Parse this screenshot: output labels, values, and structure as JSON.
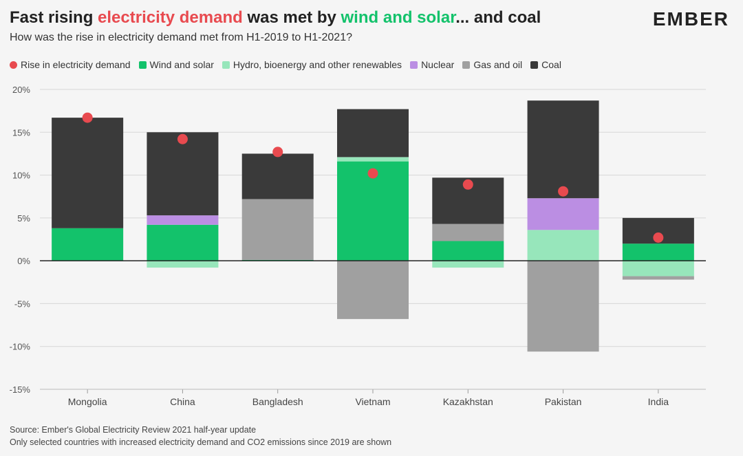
{
  "header": {
    "title_part1": "Fast rising ",
    "title_highlight1": "electricity demand",
    "title_part2": " was met by ",
    "title_highlight2": "wind and solar",
    "title_part3": "... and coal",
    "subtitle": "How was the rise in electricity demand met from H1-2019 to H1-2021?",
    "logo": "EMBER"
  },
  "colors": {
    "demand": "#e84a4f",
    "wind_solar": "#13c26b",
    "hydro": "#97e6bb",
    "nuclear": "#bb8ee3",
    "gas_oil": "#a0a0a0",
    "coal": "#3a3a3a",
    "title_red": "#e84a4f",
    "title_green": "#13c26b"
  },
  "legend": [
    {
      "label": "Rise in electricity demand",
      "key": "demand",
      "shape": "dot"
    },
    {
      "label": "Wind and solar",
      "key": "wind_solar",
      "shape": "square"
    },
    {
      "label": "Hydro, bioenergy and other renewables",
      "key": "hydro",
      "shape": "square"
    },
    {
      "label": "Nuclear",
      "key": "nuclear",
      "shape": "square"
    },
    {
      "label": "Gas and oil",
      "key": "gas_oil",
      "shape": "square"
    },
    {
      "label": "Coal",
      "key": "coal",
      "shape": "square"
    }
  ],
  "chart_data": {
    "type": "bar",
    "stacked": true,
    "categories": [
      "Mongolia",
      "China",
      "Bangladesh",
      "Vietnam",
      "Kazakhstan",
      "Pakistan",
      "India"
    ],
    "ylim": [
      -15,
      20
    ],
    "yticks": [
      20,
      15,
      10,
      5,
      0,
      -5,
      -10,
      -15
    ],
    "ytick_labels": [
      "20%",
      "15%",
      "10%",
      "5%",
      "0%",
      "-5%",
      "-10%",
      "-15%"
    ],
    "grid": true,
    "series": [
      {
        "name": "Wind and solar",
        "key": "wind_solar",
        "values": [
          3.8,
          4.2,
          0.1,
          11.6,
          2.3,
          0,
          2.0
        ]
      },
      {
        "name": "Hydro, bioenergy and other renewables",
        "key": "hydro",
        "values": [
          0,
          -0.8,
          0,
          0.5,
          -0.8,
          3.6,
          -1.8
        ]
      },
      {
        "name": "Nuclear",
        "key": "nuclear",
        "values": [
          0,
          1.1,
          0,
          0,
          0,
          3.7,
          0
        ]
      },
      {
        "name": "Gas and oil",
        "key": "gas_oil",
        "values": [
          0,
          0,
          7.1,
          -6.8,
          2.0,
          -10.6,
          -0.4
        ]
      },
      {
        "name": "Coal",
        "key": "coal",
        "values": [
          12.9,
          9.7,
          5.3,
          5.6,
          5.4,
          11.4,
          3.0
        ]
      }
    ],
    "demand": {
      "name": "Rise in electricity demand",
      "values": [
        16.7,
        14.2,
        12.7,
        10.2,
        8.9,
        8.1,
        2.7
      ]
    }
  },
  "footer": {
    "source": "Source: Ember's Global Electricity Review 2021 half-year update",
    "note": "Only selected countries with increased electricity demand and CO2 emissions since 2019 are shown"
  }
}
